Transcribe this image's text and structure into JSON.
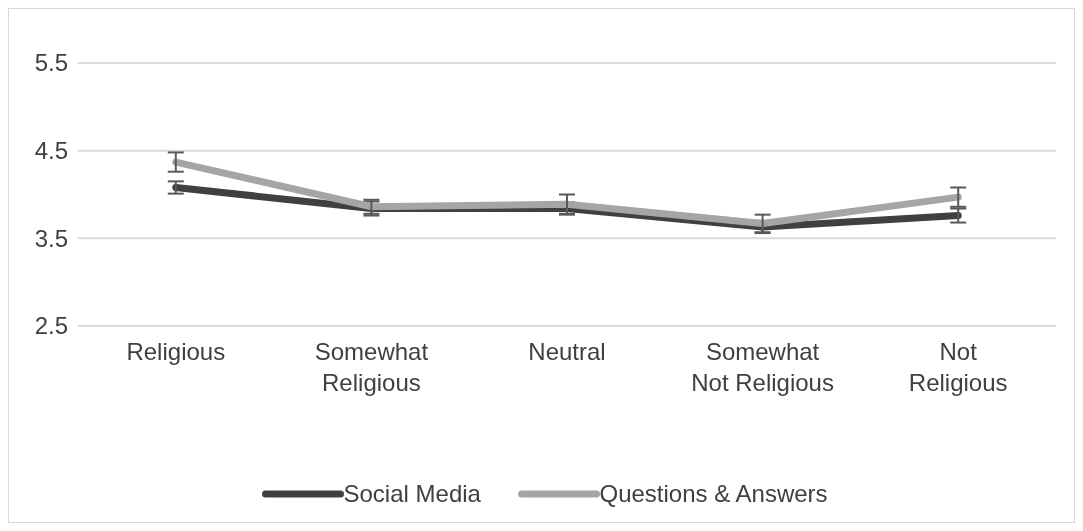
{
  "chart_data": {
    "type": "line",
    "categories": [
      "Religious",
      "Somewhat Religious",
      "Neutral",
      "Somewhat Not Religious",
      "Not Religious"
    ],
    "series": [
      {
        "name": "Social Media",
        "color": "#404040",
        "values": [
          4.08,
          3.84,
          3.84,
          3.63,
          3.76
        ],
        "errors": [
          0.07,
          0.08,
          0.07,
          0.07,
          0.08
        ]
      },
      {
        "name": "Questions & Answers",
        "color": "#a5a5a5",
        "values": [
          4.37,
          3.86,
          3.89,
          3.67,
          3.97
        ],
        "errors": [
          0.11,
          0.08,
          0.11,
          0.1,
          0.11
        ]
      }
    ],
    "ylim": [
      2.5,
      5.5
    ],
    "yticks": [
      2.5,
      3.5,
      4.5,
      5.5
    ],
    "grid": "y",
    "legend": "bottom",
    "marker": "none",
    "line_style": "solid"
  }
}
